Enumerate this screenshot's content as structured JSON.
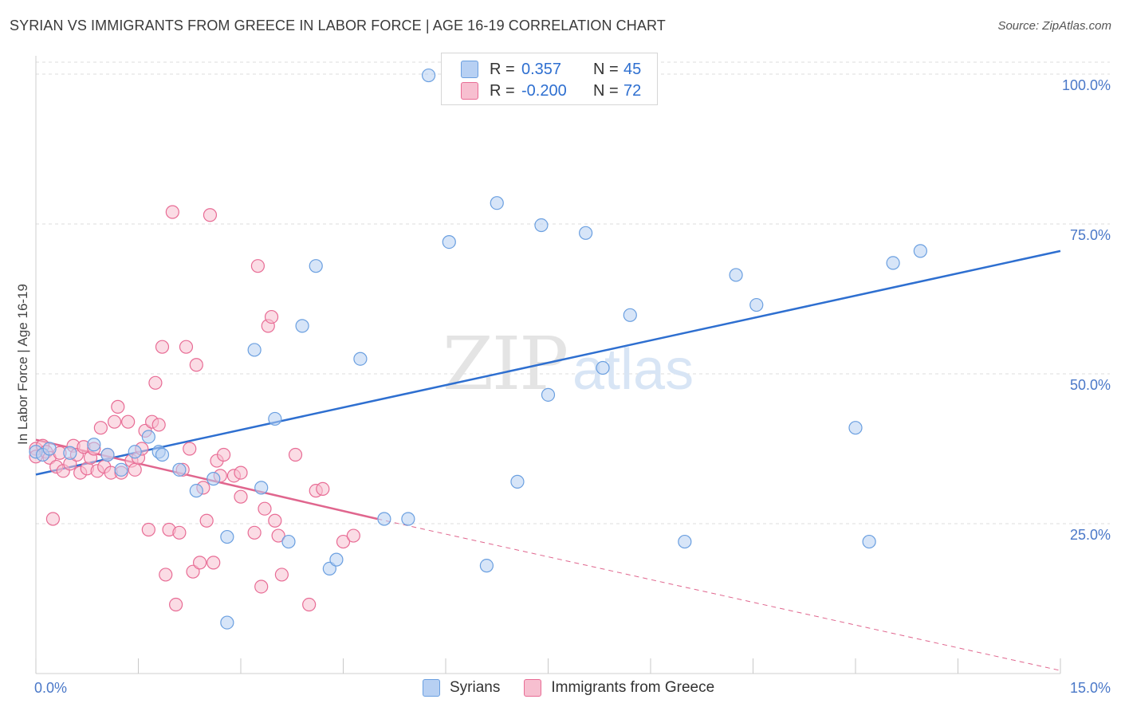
{
  "title": "SYRIAN VS IMMIGRANTS FROM GREECE IN LABOR FORCE | AGE 16-19 CORRELATION CHART",
  "source": "Source: ZipAtlas.com",
  "colors": {
    "blue": "#6a9fe0",
    "blue_fill": "#b7d0f3",
    "pink": "#e86c95",
    "pink_fill": "#f7bfd0",
    "blue_line": "#2e6fd0",
    "pink_line": "#e0668e",
    "tick_text": "#4a78c8"
  },
  "legend": {
    "rows": [
      {
        "r_label": "R =",
        "r_value": "0.357",
        "n_label": "N =",
        "n_value": "45"
      },
      {
        "r_label": "R =",
        "r_value": "-0.200",
        "n_label": "N =",
        "n_value": "72"
      }
    ]
  },
  "bottom_legend": [
    "Syrians",
    "Immigrants from Greece"
  ],
  "watermark": {
    "zip": "ZIP",
    "atlas": "atlas"
  },
  "chart_data": {
    "type": "scatter",
    "title": "SYRIAN VS IMMIGRANTS FROM GREECE IN LABOR FORCE | AGE 16-19 CORRELATION CHART",
    "xlabel": "",
    "ylabel": "In Labor Force | Age 16-19",
    "xlim": [
      0,
      15
    ],
    "ylim": [
      0,
      102
    ],
    "x_tick_labels": [
      "0.0%",
      "15.0%"
    ],
    "y_tick_labels": [
      "100.0%",
      "75.0%",
      "50.0%",
      "25.0%"
    ],
    "y_ticks": [
      100,
      75,
      50,
      25
    ],
    "grid": true,
    "legend_position": "top-center",
    "series": [
      {
        "name": "Syrians",
        "color": "#6a9fe0",
        "r": 0.357,
        "n": 45,
        "trend": {
          "x": [
            0,
            15
          ],
          "y": [
            33.2,
            70.5
          ]
        },
        "points": [
          [
            0.0,
            37.0
          ],
          [
            0.1,
            36.5
          ],
          [
            0.2,
            37.5
          ],
          [
            0.5,
            36.8
          ],
          [
            0.85,
            38.2
          ],
          [
            1.05,
            36.5
          ],
          [
            1.25,
            34.0
          ],
          [
            1.45,
            37.0
          ],
          [
            1.65,
            39.5
          ],
          [
            1.8,
            37.0
          ],
          [
            1.85,
            36.5
          ],
          [
            2.1,
            34.0
          ],
          [
            2.35,
            30.5
          ],
          [
            2.6,
            32.5
          ],
          [
            2.8,
            22.8
          ],
          [
            2.8,
            8.5
          ],
          [
            3.2,
            54.0
          ],
          [
            3.3,
            31.0
          ],
          [
            3.5,
            42.5
          ],
          [
            3.7,
            22.0
          ],
          [
            3.9,
            58.0
          ],
          [
            4.1,
            68.0
          ],
          [
            4.3,
            17.5
          ],
          [
            4.4,
            19.0
          ],
          [
            4.75,
            52.5
          ],
          [
            5.1,
            25.8
          ],
          [
            5.45,
            25.8
          ],
          [
            5.75,
            99.8
          ],
          [
            6.05,
            72.0
          ],
          [
            6.35,
            99.8
          ],
          [
            6.75,
            78.5
          ],
          [
            6.6,
            18.0
          ],
          [
            7.05,
            32.0
          ],
          [
            7.4,
            74.8
          ],
          [
            7.5,
            46.5
          ],
          [
            8.05,
            73.5
          ],
          [
            8.3,
            51.0
          ],
          [
            8.7,
            59.8
          ],
          [
            9.5,
            22.0
          ],
          [
            10.25,
            66.5
          ],
          [
            10.55,
            61.5
          ],
          [
            12.0,
            41.0
          ],
          [
            12.2,
            22.0
          ],
          [
            12.55,
            68.5
          ],
          [
            12.95,
            70.5
          ]
        ]
      },
      {
        "name": "Immigrants from Greece",
        "color": "#e86c95",
        "r": -0.2,
        "n": 72,
        "trend": {
          "x": [
            0,
            5.0
          ],
          "y": [
            39.0,
            25.8
          ]
        },
        "trend_dashed": {
          "x": [
            5.0,
            15
          ],
          "y": [
            25.8,
            0.5
          ]
        },
        "points": [
          [
            0.0,
            37.5
          ],
          [
            0.0,
            36.2
          ],
          [
            0.1,
            38.0
          ],
          [
            0.15,
            37.0
          ],
          [
            0.2,
            36.0
          ],
          [
            0.25,
            25.8
          ],
          [
            0.3,
            34.5
          ],
          [
            0.35,
            36.8
          ],
          [
            0.4,
            33.8
          ],
          [
            0.5,
            35.0
          ],
          [
            0.55,
            38.0
          ],
          [
            0.6,
            36.5
          ],
          [
            0.65,
            33.5
          ],
          [
            0.7,
            37.8
          ],
          [
            0.75,
            34.2
          ],
          [
            0.8,
            36.0
          ],
          [
            0.85,
            37.5
          ],
          [
            0.9,
            33.8
          ],
          [
            0.95,
            41.0
          ],
          [
            1.0,
            34.5
          ],
          [
            1.05,
            36.5
          ],
          [
            1.1,
            33.5
          ],
          [
            1.15,
            42.0
          ],
          [
            1.2,
            44.5
          ],
          [
            1.25,
            33.5
          ],
          [
            1.35,
            42.0
          ],
          [
            1.4,
            35.5
          ],
          [
            1.45,
            34.0
          ],
          [
            1.5,
            36.0
          ],
          [
            1.55,
            37.5
          ],
          [
            1.6,
            40.5
          ],
          [
            1.65,
            24.0
          ],
          [
            1.7,
            42.0
          ],
          [
            1.75,
            48.5
          ],
          [
            1.8,
            41.5
          ],
          [
            1.85,
            54.5
          ],
          [
            1.9,
            16.5
          ],
          [
            1.95,
            24.0
          ],
          [
            2.0,
            77.0
          ],
          [
            2.05,
            11.5
          ],
          [
            2.1,
            23.5
          ],
          [
            2.15,
            34.0
          ],
          [
            2.2,
            54.5
          ],
          [
            2.25,
            37.5
          ],
          [
            2.3,
            17.0
          ],
          [
            2.35,
            51.5
          ],
          [
            2.4,
            18.5
          ],
          [
            2.45,
            31.0
          ],
          [
            2.5,
            25.5
          ],
          [
            2.55,
            76.5
          ],
          [
            2.6,
            18.5
          ],
          [
            2.65,
            35.5
          ],
          [
            2.7,
            33.0
          ],
          [
            2.75,
            36.5
          ],
          [
            2.9,
            33.0
          ],
          [
            3.0,
            29.5
          ],
          [
            3.2,
            23.5
          ],
          [
            3.25,
            68.0
          ],
          [
            3.3,
            14.5
          ],
          [
            3.35,
            27.5
          ],
          [
            3.4,
            58.0
          ],
          [
            3.45,
            59.5
          ],
          [
            3.5,
            25.5
          ],
          [
            3.55,
            23.0
          ],
          [
            3.6,
            16.5
          ],
          [
            3.8,
            36.5
          ],
          [
            4.0,
            11.5
          ],
          [
            4.1,
            30.5
          ],
          [
            4.2,
            30.8
          ],
          [
            4.5,
            22.0
          ],
          [
            4.65,
            23.0
          ],
          [
            3.0,
            33.5
          ]
        ]
      }
    ]
  }
}
